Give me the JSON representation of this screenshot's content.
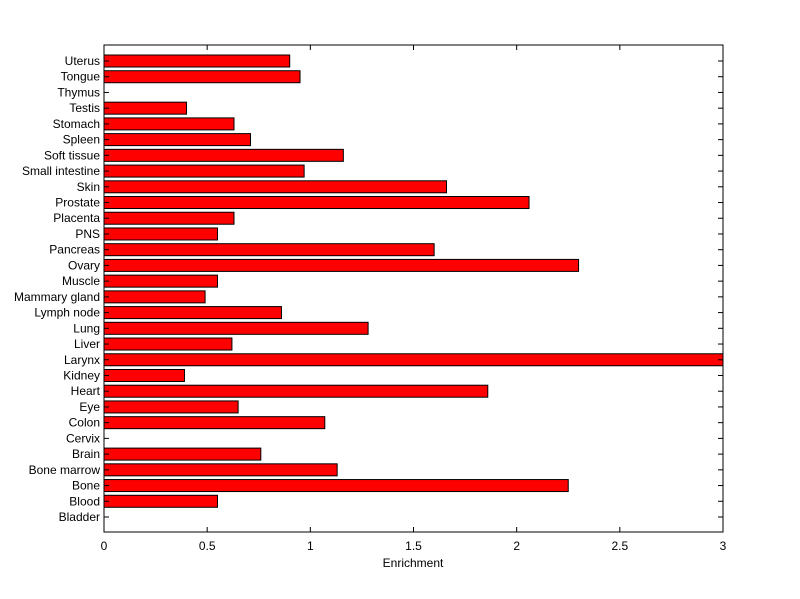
{
  "chart_data": {
    "type": "bar",
    "orientation": "horizontal",
    "title": "",
    "xlabel": "Enrichment",
    "ylabel": "",
    "xlim": [
      0,
      3
    ],
    "xticks": [
      "0",
      "0.5",
      "1",
      "1.5",
      "2",
      "2.5",
      "3"
    ],
    "grid": false,
    "legend": "none",
    "bar_color": "#ff0000",
    "categories": [
      "Uterus",
      "Tongue",
      "Thymus",
      "Testis",
      "Stomach",
      "Spleen",
      "Soft tissue",
      "Small intestine",
      "Skin",
      "Prostate",
      "Placenta",
      "PNS",
      "Pancreas",
      "Ovary",
      "Muscle",
      "Mammary gland",
      "Lymph node",
      "Lung",
      "Liver",
      "Larynx",
      "Kidney",
      "Heart",
      "Eye",
      "Colon",
      "Cervix",
      "Brain",
      "Bone marrow",
      "Bone",
      "Blood",
      "Bladder"
    ],
    "values": [
      0.9,
      0.95,
      0,
      0.4,
      0.63,
      0.71,
      1.16,
      0.97,
      1.66,
      2.06,
      0.63,
      0.55,
      1.6,
      2.3,
      0.55,
      0.49,
      0.86,
      1.28,
      0.62,
      3.0,
      0.39,
      1.86,
      0.65,
      1.07,
      0,
      0.76,
      1.13,
      2.25,
      0.55,
      0
    ]
  }
}
